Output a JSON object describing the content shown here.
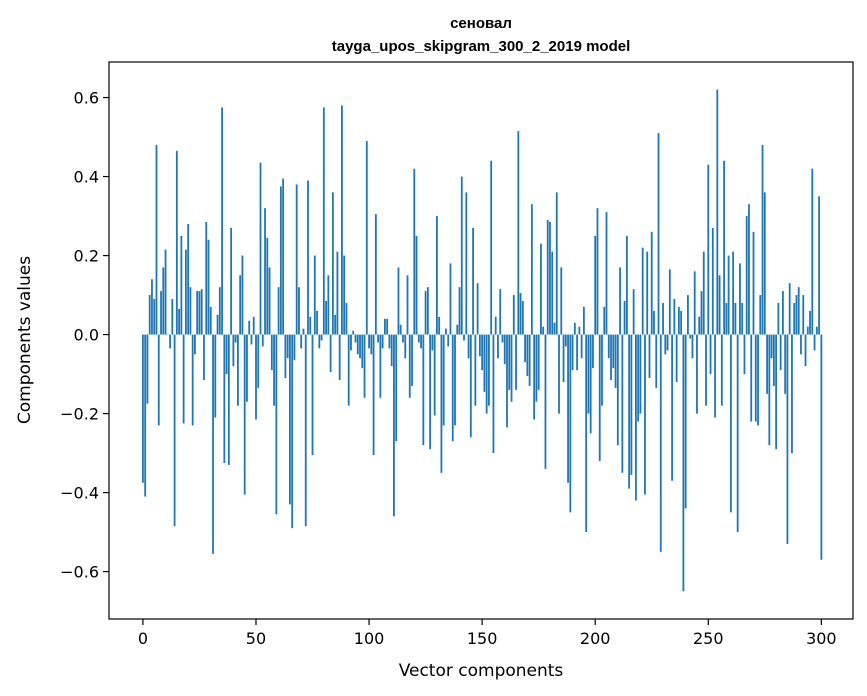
{
  "chart_data": {
    "type": "bar",
    "title": "сеновал",
    "subtitle": "tayga_upos_skipgram_300_2_2019 model",
    "xlabel": "Vector components",
    "ylabel": "Components values",
    "xlim": [
      -15,
      314
    ],
    "ylim": [
      -0.72,
      0.69
    ],
    "xticks": [
      0,
      50,
      100,
      150,
      200,
      250,
      300
    ],
    "xtick_labels": [
      "0",
      "50",
      "100",
      "150",
      "200",
      "250",
      "300"
    ],
    "yticks": [
      -0.6,
      -0.4,
      -0.2,
      0.0,
      0.2,
      0.4,
      0.6
    ],
    "ytick_labels": [
      "−0.6",
      "−0.4",
      "−0.2",
      "0.0",
      "0.2",
      "0.4",
      "0.6"
    ],
    "bar_color": "#1f77b4",
    "grid": false,
    "values": [
      -0.375,
      -0.41,
      -0.175,
      0.1,
      0.14,
      0.09,
      0.48,
      -0.23,
      0.11,
      0.17,
      0.215,
      0.0,
      -0.035,
      0.09,
      -0.485,
      0.465,
      0.065,
      0.25,
      -0.225,
      0.215,
      0.28,
      0.12,
      -0.23,
      -0.05,
      0.11,
      0.11,
      0.115,
      -0.115,
      0.285,
      0.24,
      0.07,
      -0.555,
      -0.21,
      0.05,
      0.12,
      0.575,
      -0.325,
      -0.1,
      -0.33,
      0.27,
      -0.08,
      -0.02,
      -0.18,
      0.15,
      0.2,
      -0.405,
      -0.17,
      0.035,
      -0.025,
      0.045,
      -0.215,
      -0.135,
      0.435,
      -0.03,
      0.32,
      0.245,
      0.17,
      -0.09,
      -0.18,
      -0.455,
      0.12,
      0.375,
      0.395,
      -0.11,
      -0.06,
      -0.43,
      -0.49,
      -0.065,
      0.38,
      0.12,
      -0.035,
      0.015,
      -0.485,
      0.39,
      0.045,
      -0.305,
      0.2,
      0.06,
      -0.035,
      -0.015,
      0.575,
      0.085,
      0.15,
      -0.095,
      0.36,
      0.05,
      0.21,
      -0.115,
      0.58,
      0.2,
      0.08,
      -0.18,
      -0.04,
      0.01,
      -0.02,
      -0.05,
      -0.06,
      -0.085,
      -0.16,
      0.49,
      -0.035,
      -0.05,
      -0.305,
      0.305,
      -0.02,
      -0.16,
      -0.035,
      0.04,
      0.04,
      -0.035,
      -0.08,
      -0.46,
      -0.27,
      0.17,
      0.025,
      -0.02,
      -0.06,
      0.15,
      -0.16,
      -0.13,
      0.42,
      0.25,
      -0.02,
      -0.035,
      -0.28,
      0.11,
      0.12,
      -0.29,
      -0.04,
      -0.205,
      0.3,
      0.045,
      -0.35,
      -0.23,
      0.015,
      -0.03,
      0.18,
      -0.27,
      -0.23,
      0.025,
      0.12,
      0.4,
      -0.015,
      0.36,
      -0.06,
      -0.26,
      0.27,
      -0.18,
      0.13,
      -0.055,
      -0.09,
      -0.145,
      -0.2,
      -0.18,
      0.44,
      -0.3,
      0.045,
      -0.06,
      0.115,
      -0.02,
      -0.075,
      -0.235,
      -0.14,
      -0.17,
      0.1,
      -0.14,
      0.515,
      0.105,
      0.085,
      -0.07,
      -0.105,
      -0.13,
      0.33,
      -0.215,
      -0.17,
      -0.14,
      0.23,
      0.02,
      -0.34,
      0.29,
      0.285,
      0.21,
      0.03,
      0.36,
      -0.2,
      0.17,
      -0.12,
      -0.03,
      -0.375,
      -0.45,
      -0.09,
      0.03,
      -0.09,
      0.02,
      -0.06,
      0.07,
      -0.5,
      -0.2,
      -0.25,
      -0.085,
      0.25,
      0.32,
      -0.32,
      -0.18,
      0.07,
      0.31,
      -0.06,
      -0.115,
      -0.085,
      -0.135,
      -0.28,
      0.17,
      -0.35,
      0.085,
      0.25,
      -0.39,
      -0.355,
      0.115,
      -0.42,
      -0.22,
      -0.2,
      0.22,
      -0.405,
      0.21,
      -0.11,
      0.26,
      0.06,
      -0.135,
      0.51,
      -0.55,
      0.08,
      -0.05,
      -0.04,
      0.165,
      -0.37,
      0.09,
      -0.12,
      0.07,
      0.06,
      -0.65,
      -0.44,
      0.1,
      -0.01,
      -0.06,
      0.16,
      -0.2,
      0.045,
      0.11,
      0.21,
      -0.18,
      0.43,
      -0.1,
      0.27,
      -0.21,
      0.62,
      0.15,
      -0.18,
      0.44,
      0.08,
      0.2,
      -0.45,
      0.21,
      0.08,
      -0.5,
      0.18,
      0.08,
      -0.1,
      0.3,
      0.33,
      -0.22,
      0.26,
      -0.22,
      -0.23,
      0.1,
      0.48,
      0.36,
      -0.15,
      -0.28,
      -0.06,
      -0.13,
      -0.29,
      0.08,
      -0.09,
      0.11,
      -0.15,
      -0.53,
      0.13,
      -0.3,
      0.08,
      0.1,
      0.12,
      -0.05,
      0.1,
      -0.08,
      0.02,
      0.06,
      0.42,
      -0.04,
      0.02,
      0.35,
      -0.57
    ]
  }
}
